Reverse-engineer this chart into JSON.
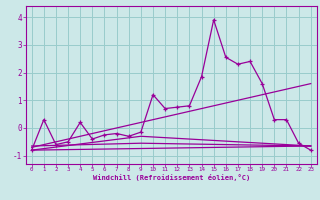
{
  "xlabel": "Windchill (Refroidissement éolien,°C)",
  "background_color": "#cce8e8",
  "grid_color": "#99cccc",
  "line_color": "#990099",
  "xlim": [
    -0.5,
    23.5
  ],
  "ylim": [
    -1.3,
    4.4
  ],
  "yticks": [
    -1,
    0,
    1,
    2,
    3,
    4
  ],
  "xticks": [
    0,
    1,
    2,
    3,
    4,
    5,
    6,
    7,
    8,
    9,
    10,
    11,
    12,
    13,
    14,
    15,
    16,
    17,
    18,
    19,
    20,
    21,
    22,
    23
  ],
  "series": [
    [
      0,
      -0.8
    ],
    [
      1,
      0.3
    ],
    [
      2,
      -0.6
    ],
    [
      3,
      -0.5
    ],
    [
      4,
      0.2
    ],
    [
      5,
      -0.4
    ],
    [
      6,
      -0.25
    ],
    [
      7,
      -0.2
    ],
    [
      8,
      -0.3
    ],
    [
      9,
      -0.15
    ],
    [
      10,
      1.2
    ],
    [
      11,
      0.7
    ],
    [
      12,
      0.75
    ],
    [
      13,
      0.8
    ],
    [
      14,
      1.85
    ],
    [
      15,
      3.9
    ],
    [
      16,
      2.55
    ],
    [
      17,
      2.3
    ],
    [
      18,
      2.4
    ],
    [
      19,
      1.6
    ],
    [
      20,
      0.3
    ],
    [
      21,
      0.3
    ],
    [
      22,
      -0.55
    ],
    [
      23,
      -0.8
    ]
  ],
  "trend_line1": [
    [
      0,
      23
    ],
    [
      -0.7,
      1.6
    ]
  ],
  "trend_line2": [
    [
      0,
      9,
      23
    ],
    [
      -0.65,
      -0.55,
      -0.65
    ]
  ],
  "trend_line3": [
    [
      0,
      23
    ],
    [
      -0.8,
      -0.65
    ]
  ],
  "trend_line4": [
    [
      0,
      9,
      23
    ],
    [
      -0.8,
      -0.3,
      -0.65
    ]
  ]
}
